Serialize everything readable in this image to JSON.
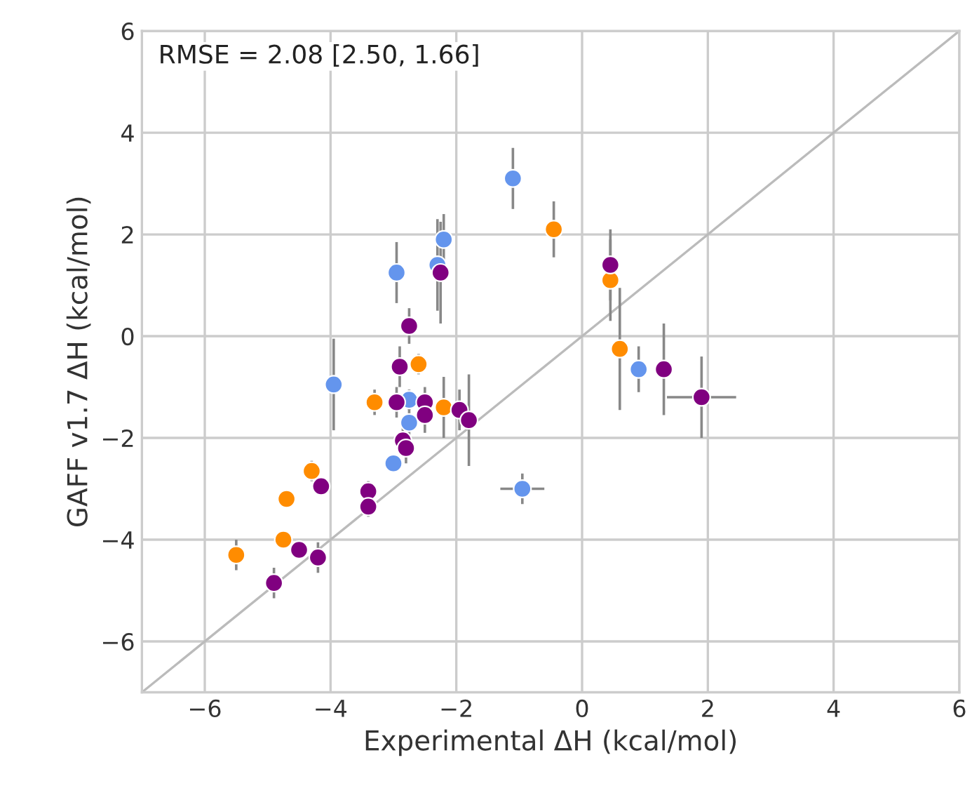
{
  "chart_data": {
    "type": "scatter",
    "xlabel": "Experimental ΔH (kcal/mol)",
    "ylabel": "GAFF v1.7 ΔH (kcal/mol)",
    "annotations": [
      "RMSE = 2.08 [2.50, 1.66]"
    ],
    "xlim": [
      -7,
      6
    ],
    "ylim": [
      -7,
      6
    ],
    "xticks": [
      -6,
      -4,
      -2,
      0,
      2,
      4,
      6
    ],
    "yticks": [
      -6,
      -4,
      -2,
      0,
      2,
      4,
      6
    ],
    "grid": true,
    "marker": "circle",
    "series": [
      {
        "type": "line",
        "color": "#bbbbbb",
        "x": [
          -7,
          6
        ],
        "values": [
          -7,
          6
        ],
        "marker": "none"
      },
      {
        "color": "#6495ed",
        "x": [
          -1.1,
          -2.2,
          -2.3,
          -2.95,
          -3.95,
          -2.75,
          -2.75,
          -3.0,
          -0.95,
          0.9
        ],
        "values": [
          3.1,
          1.9,
          1.4,
          1.25,
          -0.95,
          -1.25,
          -1.7,
          -2.5,
          -3.0,
          -0.65
        ],
        "errors": [
          0.6,
          0.5,
          0.9,
          0.6,
          0.9,
          0.2,
          0.3,
          null,
          0.3,
          0.45
        ],
        "xerrors": [
          null,
          null,
          null,
          null,
          null,
          null,
          null,
          null,
          0.35,
          null
        ]
      },
      {
        "color": "#ff8c00",
        "x": [
          -0.45,
          0.45,
          0.6,
          -2.6,
          -3.3,
          -2.2,
          -4.3,
          -4.7,
          -4.75,
          -5.5
        ],
        "values": [
          2.1,
          1.1,
          -0.25,
          -0.55,
          -1.3,
          -1.4,
          -2.65,
          -3.2,
          -4.0,
          -4.3
        ],
        "errors": [
          0.55,
          0.8,
          1.2,
          0.2,
          0.25,
          0.6,
          0.2,
          null,
          null,
          0.3
        ]
      },
      {
        "color": "#800080",
        "x": [
          0.45,
          1.3,
          1.9,
          -2.25,
          -2.75,
          -2.9,
          -2.95,
          -2.5,
          -2.5,
          -1.95,
          -1.8,
          -2.85,
          -2.8,
          -4.15,
          -3.4,
          -3.4,
          -4.5,
          -4.2,
          -4.9
        ],
        "values": [
          1.4,
          -0.65,
          -1.2,
          1.25,
          0.2,
          -0.6,
          -1.3,
          -1.3,
          -1.55,
          -1.45,
          -1.65,
          -2.05,
          -2.2,
          -2.95,
          -3.05,
          -3.35,
          -4.2,
          -4.35,
          -4.85
        ],
        "errors": [
          0.7,
          0.9,
          0.8,
          1.0,
          0.35,
          0.4,
          0.3,
          0.3,
          0.35,
          0.4,
          0.9,
          0.3,
          0.3,
          null,
          0.2,
          0.2,
          null,
          0.3,
          0.3
        ],
        "xerrors": [
          null,
          null,
          0.55,
          null,
          null,
          null,
          null,
          null,
          null,
          null,
          null,
          null,
          null,
          null,
          null,
          null,
          null,
          null,
          null
        ]
      }
    ]
  }
}
